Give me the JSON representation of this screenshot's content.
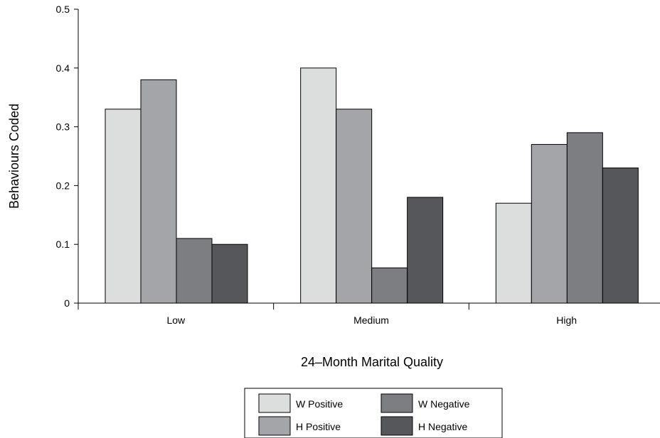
{
  "chart_data": {
    "type": "bar",
    "title": "",
    "xlabel": "24–Month Marital Quality",
    "ylabel": "Behaviours Coded",
    "categories": [
      "Low",
      "Medium",
      "High"
    ],
    "ylim": [
      0,
      0.5
    ],
    "yticks": [
      0,
      0.1,
      0.2,
      0.3,
      0.4,
      0.5
    ],
    "ytick_labels": [
      "0",
      "0.1",
      "0.2",
      "0.3",
      "0.4",
      "0.5"
    ],
    "grid": false,
    "legend_position": "bottom-center",
    "series": [
      {
        "name": "W Positive",
        "color": "#dcdddd",
        "values": [
          0.33,
          0.4,
          0.17
        ]
      },
      {
        "name": "H Positive",
        "color": "#a3a5a8",
        "values": [
          0.38,
          0.33,
          0.27
        ]
      },
      {
        "name": "W Negative",
        "color": "#7c7e82",
        "values": [
          0.11,
          0.06,
          0.29
        ]
      },
      {
        "name": "H Negative",
        "color": "#55575a",
        "values": [
          0.1,
          0.18,
          0.23
        ]
      }
    ]
  }
}
